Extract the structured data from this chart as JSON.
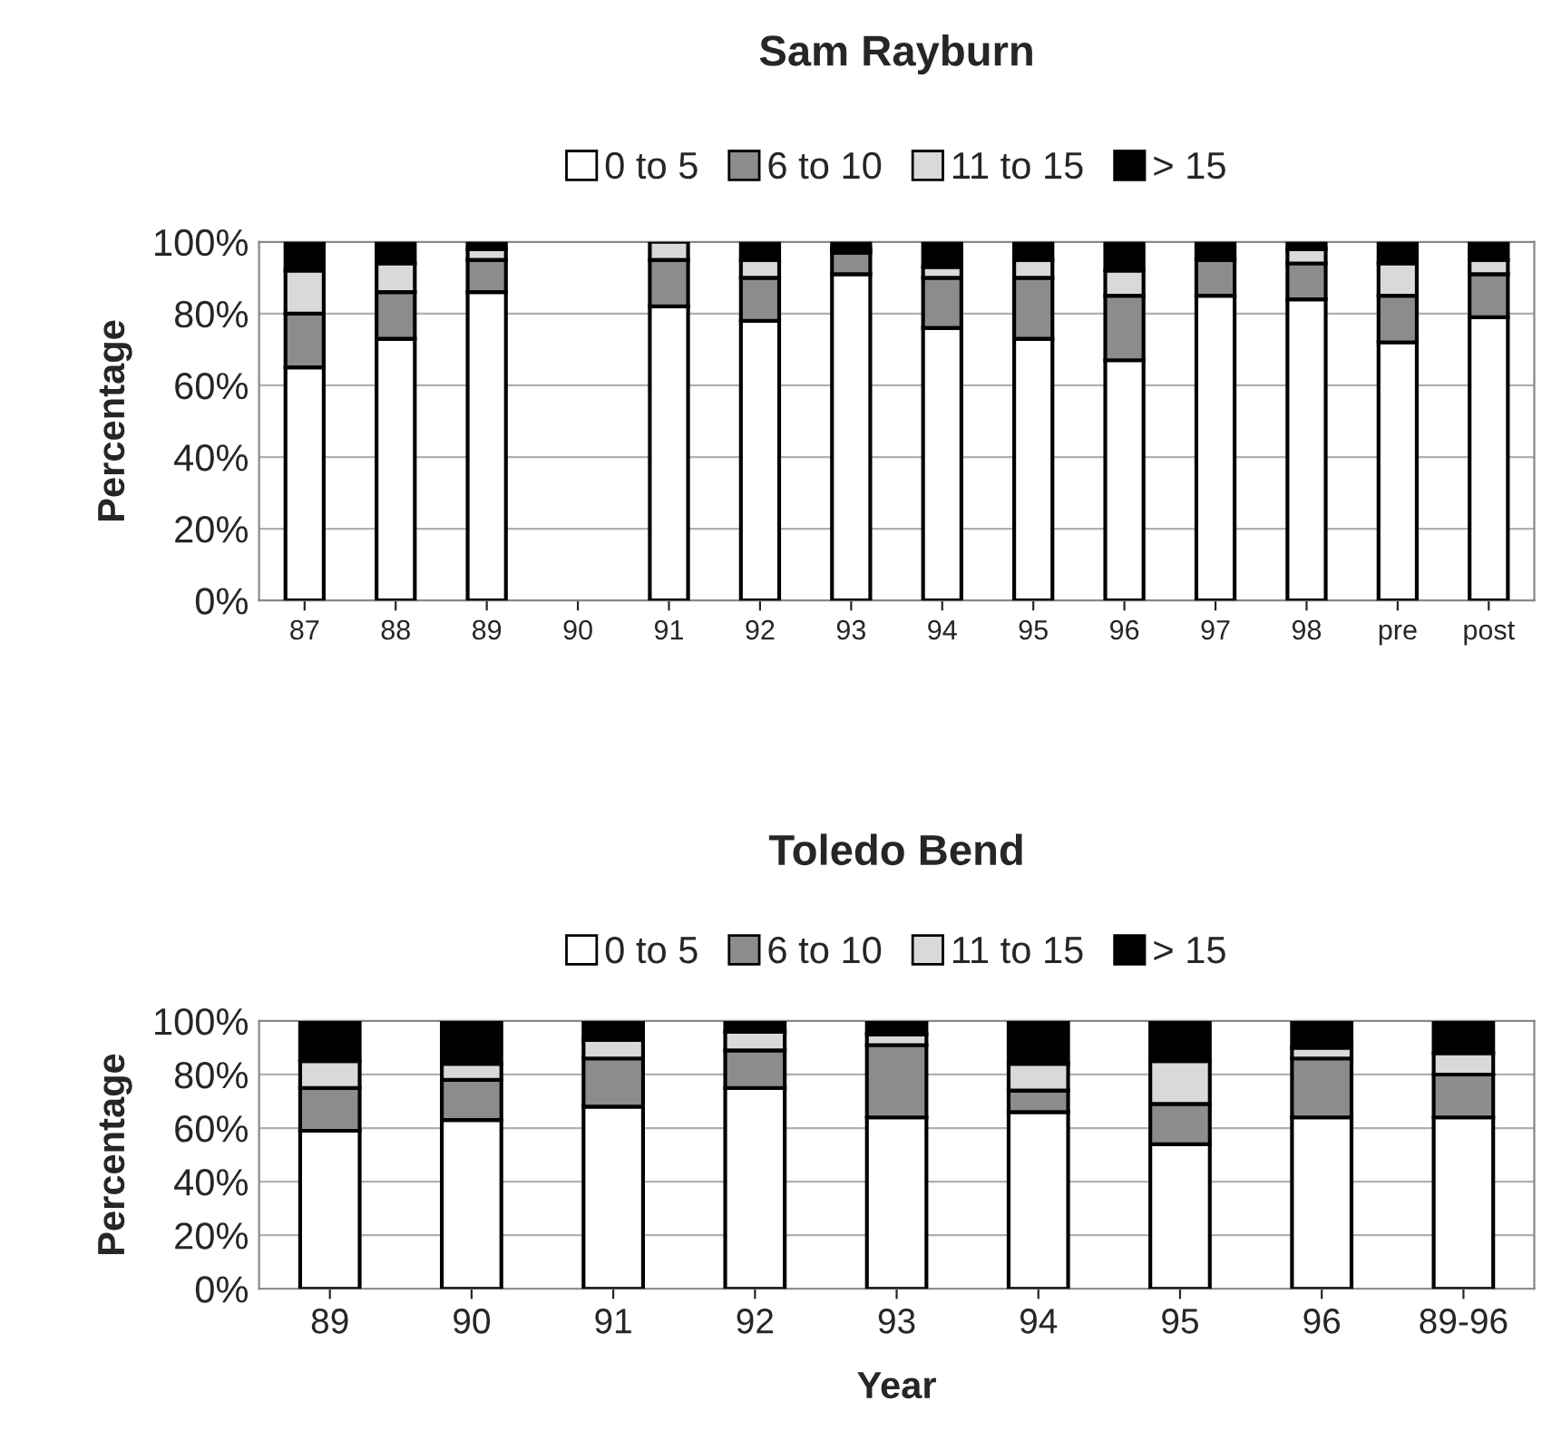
{
  "chart_data": [
    {
      "type": "bar",
      "title": "Sam Rayburn",
      "ylabel": "Percentage",
      "stacked": true,
      "legend": "top",
      "grid": "y",
      "categories": [
        "87",
        "88",
        "89",
        "90",
        "91",
        "92",
        "93",
        "94",
        "95",
        "96",
        "97",
        "98",
        "pre",
        "post"
      ],
      "ylim": [
        0,
        100
      ],
      "yticks": [
        {
          "value": 0,
          "label": "0%"
        },
        {
          "value": 20,
          "label": "20%"
        },
        {
          "value": 40,
          "label": "40%"
        },
        {
          "value": 60,
          "label": "60%"
        },
        {
          "value": 80,
          "label": "80%"
        },
        {
          "value": 100,
          "label": "100%"
        }
      ],
      "series": [
        {
          "name": "0 to 5",
          "color": "#ffffff",
          "values": [
            65,
            73,
            86,
            null,
            82,
            78,
            91,
            76,
            73,
            67,
            85,
            84,
            72,
            79
          ]
        },
        {
          "name": "6 to 10",
          "color": "#8c8c8c",
          "values": [
            15,
            13,
            9,
            null,
            13,
            12,
            6,
            14,
            17,
            18,
            10,
            10,
            13,
            12
          ]
        },
        {
          "name": "11 to 15",
          "color": "#d9d9d9",
          "values": [
            12,
            8,
            3,
            null,
            5,
            5,
            1,
            3,
            5,
            7,
            null,
            4,
            9,
            4
          ]
        },
        {
          "name": "> 15",
          "color": "#000000",
          "values": [
            8,
            6,
            2,
            null,
            null,
            5,
            2,
            7,
            5,
            8,
            5,
            2,
            6,
            5
          ]
        }
      ]
    },
    {
      "type": "bar",
      "title": "Toledo Bend",
      "xlabel": "Year",
      "ylabel": "Percentage",
      "stacked": true,
      "legend": "top",
      "grid": "y",
      "categories": [
        "89",
        "90",
        "91",
        "92",
        "93",
        "94",
        "95",
        "96",
        "89-96"
      ],
      "ylim": [
        0,
        100
      ],
      "yticks": [
        {
          "value": 0,
          "label": "0%"
        },
        {
          "value": 20,
          "label": "20%"
        },
        {
          "value": 40,
          "label": "40%"
        },
        {
          "value": 60,
          "label": "60%"
        },
        {
          "value": 80,
          "label": "80%"
        },
        {
          "value": 100,
          "label": "100%"
        }
      ],
      "series": [
        {
          "name": "0 to 5",
          "color": "#ffffff",
          "values": [
            59,
            63,
            68,
            75,
            64,
            66,
            54,
            64,
            64
          ]
        },
        {
          "name": "6 to 10",
          "color": "#8c8c8c",
          "values": [
            16,
            15,
            18,
            14,
            27,
            8,
            15,
            22,
            16
          ]
        },
        {
          "name": "11 to 15",
          "color": "#d9d9d9",
          "values": [
            10,
            6,
            7,
            7,
            4,
            10,
            16,
            4,
            8
          ]
        },
        {
          "name": "> 15",
          "color": "#000000",
          "values": [
            15,
            16,
            7,
            4,
            5,
            16,
            15,
            10,
            12
          ]
        }
      ]
    }
  ]
}
